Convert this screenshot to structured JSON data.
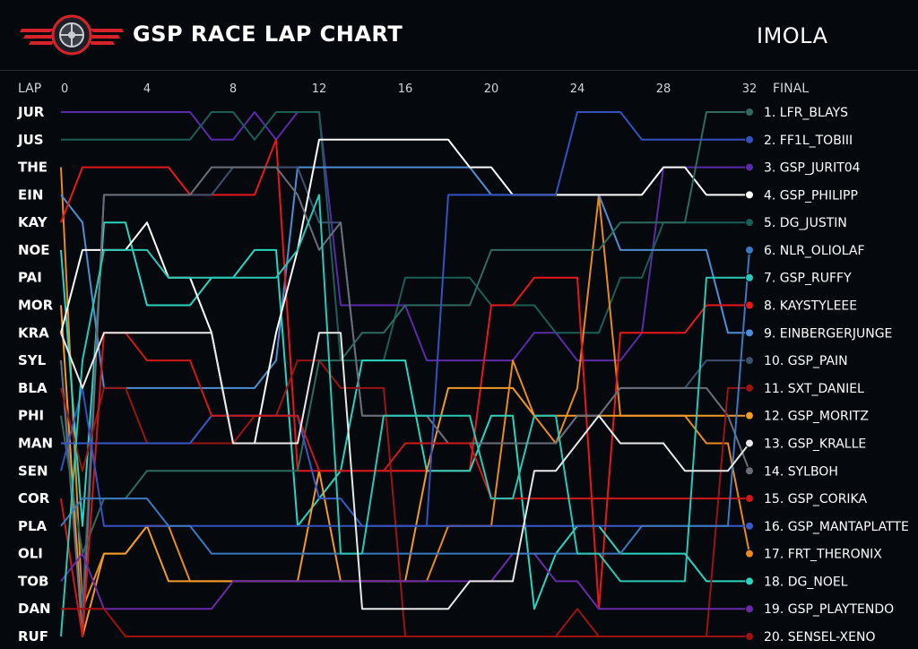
{
  "header": {
    "title": "GSP RACE LAP CHART",
    "track": "IMOLA"
  },
  "colors": {
    "background": "#05080d",
    "divider": "#2a3038",
    "text": "#e8eef3"
  },
  "chart_data": {
    "type": "line",
    "xlabel": "LAP",
    "final_label": "FINAL",
    "x_ticks": [
      0,
      4,
      8,
      12,
      16,
      20,
      24,
      28,
      32
    ],
    "xlim": [
      0,
      32
    ],
    "ylim": [
      1,
      20
    ],
    "y_inverted": true,
    "grid": false,
    "start_codes": [
      "JUR",
      "JUS",
      "THE",
      "EIN",
      "KAY",
      "NOE",
      "PAI",
      "MOR",
      "KRA",
      "SYL",
      "BLA",
      "PHI",
      "MAN",
      "SEN",
      "COR",
      "PLA",
      "OLI",
      "TOB",
      "DAN",
      "RUF"
    ],
    "final_order": [
      "1. LFR_BLAYS",
      "2. FF1L_TOBIII",
      "3. GSP_JURIT04",
      "4. GSP_PHILIPP",
      "5. DG_JUSTIN",
      "6. NLR_OLIOLAF",
      "7. GSP_RUFFY",
      "8. KAYSTYLEEE",
      "9. EINBERGERJUNGE",
      "10. GSP_PAIN",
      "11. SXT_DANIEL",
      "12. GSP_MORITZ",
      "13. GSP_KRALLE",
      "14. SYLBOH",
      "15. GSP_CORIKA",
      "16. GSP_MANTAPLATTE",
      "17. FRT_THERONIX",
      "18. DG_NOEL",
      "19. GSP_PLAYTENDO",
      "20. SENSEL-XENO"
    ],
    "series": [
      {
        "name": "GSP_JURIT04",
        "color": "#5a2aa8",
        "positions": [
          1,
          1,
          1,
          1,
          1,
          1,
          1,
          2,
          2,
          1,
          2,
          1,
          1,
          8,
          8,
          8,
          8,
          10,
          10,
          10,
          10,
          10,
          9,
          9,
          10,
          10,
          10,
          9,
          3,
          3,
          3,
          3,
          3
        ]
      },
      {
        "name": "DG_JUSTIN",
        "color": "#1b5e55",
        "positions": [
          2,
          2,
          2,
          2,
          2,
          2,
          2,
          1,
          1,
          2,
          1,
          1,
          1,
          10,
          10,
          10,
          7,
          7,
          7,
          7,
          8,
          8,
          8,
          9,
          9,
          9,
          7,
          7,
          5,
          5,
          5,
          5,
          5
        ]
      },
      {
        "name": "FRT_THERONIX",
        "color": "#e88a1e",
        "positions": [
          3,
          19,
          17,
          17,
          16,
          16,
          18,
          18,
          18,
          18,
          18,
          18,
          18,
          18,
          18,
          18,
          18,
          18,
          16,
          16,
          16,
          10,
          12,
          13,
          11,
          4,
          12,
          12,
          12,
          12,
          13,
          13,
          17
        ]
      },
      {
        "name": "EINBERGERJUNGE",
        "color": "#4e8ed4",
        "positions": [
          4,
          5,
          11,
          11,
          11,
          11,
          11,
          11,
          11,
          11,
          10,
          3,
          3,
          3,
          3,
          3,
          3,
          3,
          3,
          3,
          4,
          4,
          4,
          4,
          4,
          4,
          6,
          6,
          6,
          6,
          6,
          9,
          9
        ]
      },
      {
        "name": "KAYSTYLEEE",
        "color": "#e8171a",
        "positions": [
          5,
          3,
          3,
          3,
          3,
          3,
          4,
          4,
          4,
          4,
          2,
          14,
          14,
          14,
          14,
          14,
          14,
          14,
          14,
          14,
          8,
          8,
          7,
          7,
          7,
          19,
          9,
          9,
          9,
          9,
          8,
          8,
          8
        ]
      },
      {
        "name": "DG_NOEL",
        "color": "#2ad4bf",
        "positions": [
          6,
          16,
          5,
          5,
          8,
          8,
          8,
          7,
          7,
          6,
          6,
          16,
          15,
          14,
          10,
          10,
          10,
          14,
          14,
          14,
          12,
          12,
          19,
          17,
          16,
          16,
          17,
          17,
          17,
          17,
          18,
          18,
          18
        ]
      },
      {
        "name": "GSP_PAIN",
        "color": "#3d5070",
        "positions": [
          10,
          19,
          4,
          4,
          4,
          4,
          4,
          4,
          3,
          3,
          3,
          3,
          5,
          5,
          12,
          12,
          12,
          12,
          13,
          13,
          13,
          13,
          13,
          13,
          12,
          12,
          11,
          11,
          11,
          11,
          10,
          10,
          10
        ]
      },
      {
        "name": "GSP_MORITZ",
        "color": "#f09a2a",
        "positions": [
          8,
          20,
          17,
          17,
          16,
          18,
          18,
          18,
          18,
          18,
          18,
          18,
          14,
          18,
          18,
          18,
          18,
          14,
          11,
          11,
          11,
          11,
          12,
          12,
          12,
          12,
          12,
          12,
          12,
          12,
          12,
          12,
          12
        ]
      },
      {
        "name": "GSP_PHILIPP",
        "color": "#ffffff",
        "positions": [
          9,
          6,
          6,
          6,
          5,
          7,
          7,
          9,
          13,
          13,
          9,
          6,
          2,
          2,
          2,
          2,
          2,
          2,
          2,
          3,
          3,
          4,
          4,
          4,
          4,
          4,
          4,
          4,
          3,
          3,
          4,
          4,
          4
        ]
      },
      {
        "name": "SYLBOH",
        "color": "#6a6e78",
        "positions": [
          10,
          20,
          4,
          4,
          4,
          4,
          4,
          3,
          3,
          3,
          3,
          4,
          6,
          5,
          12,
          12,
          12,
          12,
          13,
          13,
          13,
          13,
          13,
          13,
          12,
          12,
          11,
          11,
          11,
          11,
          11,
          12,
          14
        ]
      },
      {
        "name": "SXT_DANIEL",
        "color": "#9a1414",
        "positions": [
          11,
          14,
          11,
          11,
          13,
          13,
          13,
          13,
          13,
          12,
          12,
          10,
          10,
          11,
          11,
          11,
          20,
          20,
          20,
          20,
          20,
          20,
          20,
          20,
          19,
          20,
          20,
          20,
          20,
          20,
          20,
          11,
          11
        ]
      },
      {
        "name": "LFR_BLAYS",
        "color": "#2f6a60",
        "positions": [
          12,
          17,
          15,
          15,
          14,
          14,
          14,
          14,
          14,
          14,
          14,
          14,
          10,
          10,
          9,
          9,
          8,
          8,
          8,
          8,
          6,
          6,
          6,
          6,
          6,
          6,
          5,
          5,
          5,
          5,
          1,
          1,
          1
        ]
      },
      {
        "name": "GSP_MANTAPLATTE",
        "color": "#3a58c8",
        "positions": [
          13,
          13,
          13,
          13,
          13,
          13,
          13,
          12,
          12,
          12,
          12,
          12,
          15,
          15,
          16,
          16,
          16,
          16,
          16,
          16,
          16,
          16,
          16,
          16,
          16,
          16,
          16,
          16,
          16,
          16,
          16,
          16,
          16
        ]
      },
      {
        "name": "GSP_CORIKA",
        "color": "#d01818",
        "positions": [
          15,
          20,
          9,
          9,
          10,
          10,
          10,
          12,
          12,
          12,
          12,
          12,
          14,
          14,
          14,
          14,
          13,
          13,
          13,
          13,
          15,
          15,
          15,
          15,
          15,
          15,
          15,
          15,
          15,
          15,
          15,
          15,
          15
        ]
      },
      {
        "name": "FF1L_TOBIII",
        "color": "#3352c0",
        "positions": [
          14,
          11,
          16,
          16,
          16,
          16,
          16,
          16,
          16,
          16,
          16,
          16,
          16,
          16,
          16,
          16,
          16,
          16,
          4,
          4,
          4,
          4,
          4,
          4,
          1,
          1,
          1,
          2,
          2,
          2,
          2,
          2,
          2
        ]
      },
      {
        "name": "GSP_PLAYTENDO",
        "color": "#6a2aa8",
        "positions": [
          18,
          17,
          19,
          19,
          19,
          19,
          19,
          19,
          18,
          18,
          18,
          18,
          18,
          18,
          18,
          18,
          18,
          18,
          18,
          18,
          18,
          17,
          17,
          18,
          18,
          19,
          19,
          19,
          19,
          19,
          19,
          19,
          19
        ]
      },
      {
        "name": "NLR_OLIOLAF",
        "color": "#3a78c0",
        "positions": [
          16,
          15,
          15,
          15,
          15,
          16,
          16,
          17,
          17,
          17,
          17,
          17,
          17,
          17,
          17,
          17,
          17,
          17,
          17,
          17,
          17,
          17,
          17,
          17,
          17,
          17,
          17,
          16,
          16,
          16,
          16,
          16,
          6
        ]
      },
      {
        "name": "GSP_RUFFY",
        "color": "#2ac8b4",
        "positions": [
          20,
          10,
          6,
          6,
          6,
          7,
          7,
          7,
          7,
          7,
          7,
          6,
          4,
          17,
          17,
          12,
          12,
          12,
          12,
          12,
          15,
          15,
          12,
          12,
          17,
          17,
          18,
          18,
          18,
          18,
          7,
          7,
          7
        ]
      },
      {
        "name": "GSP_KRALLE",
        "color": "#e8e8e8",
        "positions": [
          9,
          11,
          9,
          9,
          9,
          9,
          9,
          9,
          13,
          13,
          13,
          13,
          9,
          9,
          19,
          19,
          19,
          19,
          19,
          18,
          18,
          18,
          14,
          14,
          13,
          12,
          13,
          13,
          13,
          14,
          14,
          14,
          13
        ]
      },
      {
        "name": "SENSEL-XENO",
        "color": "#a01010",
        "positions": [
          19,
          19,
          19,
          20,
          20,
          20,
          20,
          20,
          20,
          20,
          20,
          20,
          20,
          20,
          20,
          20,
          20,
          20,
          20,
          20,
          20,
          20,
          20,
          20,
          20,
          20,
          20,
          20,
          20,
          20,
          20,
          20,
          20
        ]
      }
    ]
  }
}
